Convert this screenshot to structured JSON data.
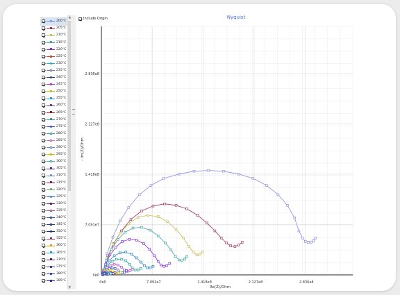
{
  "legend": {
    "items": [
      {
        "label": "200°C",
        "color": "#6a8fd8",
        "marker": "circle",
        "filled": false
      },
      {
        "label": "205°C",
        "color": "#b03060",
        "marker": "square",
        "filled": true
      },
      {
        "label": "210°C",
        "color": "#c8c060",
        "marker": "square",
        "filled": false
      },
      {
        "label": "215°C",
        "color": "#40a0a0",
        "marker": "square",
        "filled": false
      },
      {
        "label": "220°C",
        "color": "#8a2be2",
        "marker": "square",
        "filled": true
      },
      {
        "label": "225°C",
        "color": "#d04040",
        "marker": "square",
        "filled": true
      },
      {
        "label": "230°C",
        "color": "#20b0d0",
        "marker": "circle",
        "filled": true
      },
      {
        "label": "235°C",
        "color": "#7a7aa0",
        "marker": "square",
        "filled": false
      },
      {
        "label": "240°C",
        "color": "#1f3f8f",
        "marker": "circle",
        "filled": true
      },
      {
        "label": "245°C",
        "color": "#c040c0",
        "marker": "square",
        "filled": true
      },
      {
        "label": "250°C",
        "color": "#c0c020",
        "marker": "square",
        "filled": true
      },
      {
        "label": "255°C",
        "color": "#20a0e0",
        "marker": "square",
        "filled": true
      },
      {
        "label": "260°C",
        "color": "#6a3a9a",
        "marker": "square",
        "filled": true
      },
      {
        "label": "265°C",
        "color": "#8b1a1a",
        "marker": "square",
        "filled": true
      },
      {
        "label": "270°C",
        "color": "#3aa080",
        "marker": "square",
        "filled": true
      },
      {
        "label": "275°C",
        "color": "#3050d0",
        "marker": "circle",
        "filled": true
      },
      {
        "label": "280°C",
        "color": "#3aa0b0",
        "marker": "square",
        "filled": false
      },
      {
        "label": "285°C",
        "color": "#d060c0",
        "marker": "square",
        "filled": false
      },
      {
        "label": "290°C",
        "color": "#6090e0",
        "marker": "square",
        "filled": false
      },
      {
        "label": "295°C",
        "color": "#d0c000",
        "marker": "square",
        "filled": true
      },
      {
        "label": "300°C",
        "color": "#40b0c0",
        "marker": "square",
        "filled": false
      },
      {
        "label": "305°C",
        "color": "#4a2a8a",
        "marker": "square",
        "filled": true
      },
      {
        "label": "310°C",
        "color": "#5080b0",
        "marker": "circle",
        "filled": false
      },
      {
        "label": "315°C",
        "color": "#8a1a4a",
        "marker": "square",
        "filled": true
      },
      {
        "label": "320°C",
        "color": "#60a050",
        "marker": "circle",
        "filled": false
      },
      {
        "label": "325°C",
        "color": "#3070c0",
        "marker": "circle",
        "filled": false
      },
      {
        "label": "330°C",
        "color": "#5a2a6a",
        "marker": "square",
        "filled": true
      },
      {
        "label": "335°C",
        "color": "#b05090",
        "marker": "square",
        "filled": false
      },
      {
        "label": "340°C",
        "color": "#3060a0",
        "marker": "square",
        "filled": true
      },
      {
        "label": "345°C",
        "color": "#2040a0",
        "marker": "square",
        "filled": true
      },
      {
        "label": "350°C",
        "color": "#1a2a6a",
        "marker": "circle",
        "filled": true
      },
      {
        "label": "355°C",
        "color": "#8a2a6a",
        "marker": "square",
        "filled": true
      },
      {
        "label": "360°C",
        "color": "#d0a020",
        "marker": "square",
        "filled": true
      },
      {
        "label": "365°C",
        "color": "#20a0d0",
        "marker": "square",
        "filled": true
      },
      {
        "label": "370°C",
        "color": "#6a1a6a",
        "marker": "square",
        "filled": true
      },
      {
        "label": "375°C",
        "color": "#4a3a8a",
        "marker": "square",
        "filled": true
      },
      {
        "label": "380°C",
        "color": "#3a4aaa",
        "marker": "square",
        "filled": true
      },
      {
        "label": "385°C",
        "color": "#2030a0",
        "marker": "square",
        "filled": true
      }
    ]
  },
  "toolbar": {
    "include_origin_label": "Include Origin",
    "include_origin_checked": true
  },
  "chart_data": {
    "type": "scatter",
    "title": "Nyquist",
    "xlabel": "Re(Z)/Ohm",
    "ylabel": "- Im(Z)/Ohm",
    "xlim": [
      0,
      350000000.0
    ],
    "ylim": [
      0,
      350000000.0
    ],
    "xticks": [
      {
        "v": 0,
        "label": "0e0"
      },
      {
        "v": 70910000.0,
        "label": "7.091e7"
      },
      {
        "v": 141800000.0,
        "label": "1.418e8"
      },
      {
        "v": 212700000.0,
        "label": "2.127e8"
      },
      {
        "v": 283600000.0,
        "label": "2.836e8"
      }
    ],
    "yticks": [
      {
        "v": 0,
        "label": "0e0"
      },
      {
        "v": 70910000.0,
        "label": "7.091e7"
      },
      {
        "v": 141800000.0,
        "label": "1.418e8"
      },
      {
        "v": 212700000.0,
        "label": "2.127e8"
      },
      {
        "v": 283600000.0,
        "label": "2.836e8"
      }
    ],
    "grid": true,
    "series": [
      {
        "name": "200°C",
        "color": "#8a8ee8",
        "points": [
          [
            3000000.0,
            7000000.0
          ],
          [
            8000000.0,
            30000000.0
          ],
          [
            16000000.0,
            53000000.0
          ],
          [
            26000000.0,
            76000000.0
          ],
          [
            38000000.0,
            95000000.0
          ],
          [
            53000000.0,
            113000000.0
          ],
          [
            69000000.0,
            126000000.0
          ],
          [
            87000000.0,
            136000000.0
          ],
          [
            108000000.0,
            142000000.0
          ],
          [
            129000000.0,
            146000000.0
          ],
          [
            149000000.0,
            147000000.0
          ],
          [
            170000000.0,
            146000000.0
          ],
          [
            191000000.0,
            142000000.0
          ],
          [
            211000000.0,
            136000000.0
          ],
          [
            230000000.0,
            126000000.0
          ],
          [
            246000000.0,
            113000000.0
          ],
          [
            259000000.0,
            98000000.0
          ],
          [
            269000000.0,
            80000000.0
          ],
          [
            275000000.0,
            62000000.0
          ],
          [
            280000000.0,
            52000000.0
          ],
          [
            284000000.0,
            47000000.0
          ],
          [
            288000000.0,
            46000000.0
          ],
          [
            292000000.0,
            46000000.0
          ],
          [
            295000000.0,
            48000000.0
          ],
          [
            298000000.0,
            52000000.0
          ]
        ]
      },
      {
        "name": "205°C",
        "color": "#a03060",
        "points": [
          [
            3000000.0,
            6000000.0
          ],
          [
            9000000.0,
            25000000.0
          ],
          [
            17000000.0,
            44000000.0
          ],
          [
            28000000.0,
            62000000.0
          ],
          [
            41000000.0,
            78000000.0
          ],
          [
            56000000.0,
            90000000.0
          ],
          [
            72000000.0,
            97000000.0
          ],
          [
            88000000.0,
            100000000.0
          ],
          [
            104000000.0,
            98000000.0
          ],
          [
            119000000.0,
            93000000.0
          ],
          [
            134000000.0,
            84000000.0
          ],
          [
            147000000.0,
            73000000.0
          ],
          [
            158000000.0,
            62000000.0
          ],
          [
            167000000.0,
            52000000.0
          ],
          [
            174000000.0,
            45000000.0
          ],
          [
            180000000.0,
            41000000.0
          ],
          [
            186000000.0,
            40000000.0
          ],
          [
            191000000.0,
            42000000.0
          ],
          [
            196000000.0,
            46000000.0
          ]
        ]
      },
      {
        "name": "210°C",
        "color": "#c8b850",
        "points": [
          [
            3000000.0,
            6000000.0
          ],
          [
            8000000.0,
            24000000.0
          ],
          [
            16000000.0,
            43000000.0
          ],
          [
            26000000.0,
            59000000.0
          ],
          [
            38000000.0,
            72000000.0
          ],
          [
            51000000.0,
            81000000.0
          ],
          [
            65000000.0,
            84000000.0
          ],
          [
            79000000.0,
            82000000.0
          ],
          [
            92000000.0,
            75000000.0
          ],
          [
            104000000.0,
            64000000.0
          ],
          [
            114000000.0,
            52000000.0
          ],
          [
            122000000.0,
            40000000.0
          ],
          [
            128000000.0,
            32000000.0
          ],
          [
            133000000.0,
            28000000.0
          ],
          [
            137000000.0,
            29000000.0
          ],
          [
            141000000.0,
            32000000.0
          ]
        ]
      },
      {
        "name": "215°C",
        "color": "#40a0a0",
        "points": [
          [
            3000000.0,
            5000000.0
          ],
          [
            7000000.0,
            20000000.0
          ],
          [
            14000000.0,
            36000000.0
          ],
          [
            23000000.0,
            50000000.0
          ],
          [
            33000000.0,
            60000000.0
          ],
          [
            44000000.0,
            66000000.0
          ],
          [
            56000000.0,
            67000000.0
          ],
          [
            68000000.0,
            63000000.0
          ],
          [
            79000000.0,
            55000000.0
          ],
          [
            89000000.0,
            45000000.0
          ],
          [
            97000000.0,
            35000000.0
          ],
          [
            103000000.0,
            26000000.0
          ],
          [
            108000000.0,
            21000000.0
          ],
          [
            112000000.0,
            20000000.0
          ],
          [
            116000000.0,
            22000000.0
          ],
          [
            119000000.0,
            26000000.0
          ]
        ]
      },
      {
        "name": "220°C",
        "color": "#8a2be2",
        "points": [
          [
            3000000.0,
            4000000.0
          ],
          [
            6000000.0,
            15000000.0
          ],
          [
            12000000.0,
            28000000.0
          ],
          [
            20000000.0,
            39000000.0
          ],
          [
            29000000.0,
            47000000.0
          ],
          [
            39000000.0,
            50000000.0
          ],
          [
            49000000.0,
            49000000.0
          ],
          [
            59000000.0,
            44000000.0
          ],
          [
            67000000.0,
            36000000.0
          ],
          [
            74000000.0,
            27000000.0
          ],
          [
            79000000.0,
            19000000.0
          ],
          [
            83000000.0,
            14000000.0
          ],
          [
            87000000.0,
            12000000.0
          ],
          [
            91000000.0,
            13000000.0
          ],
          [
            95000000.0,
            16000000.0
          ]
        ]
      },
      {
        "name": "230°C",
        "color": "#2080c0",
        "points": [
          [
            3000000.0,
            3000000.0
          ],
          [
            6000000.0,
            11000000.0
          ],
          [
            11000000.0,
            20000000.0
          ],
          [
            18000000.0,
            27000000.0
          ],
          [
            26000000.0,
            31000000.0
          ],
          [
            34000000.0,
            32000000.0
          ],
          [
            42000000.0,
            29000000.0
          ],
          [
            49000000.0,
            24000000.0
          ],
          [
            55000000.0,
            18000000.0
          ],
          [
            60000000.0,
            13000000.0
          ],
          [
            64000000.0,
            10000000.0
          ],
          [
            68000000.0,
            10000000.0
          ],
          [
            72000000.0,
            12000000.0
          ]
        ]
      },
      {
        "name": "250°C",
        "color": "#20a0a0",
        "points": [
          [
            2000000.0,
            2000000.0
          ],
          [
            5000000.0,
            8000000.0
          ],
          [
            9000000.0,
            14000000.0
          ],
          [
            15000000.0,
            19000000.0
          ],
          [
            21000000.0,
            22000000.0
          ],
          [
            28000000.0,
            22000000.0
          ],
          [
            34000000.0,
            20000000.0
          ],
          [
            39000000.0,
            15000000.0
          ],
          [
            43000000.0,
            10000000.0
          ],
          [
            47000000.0,
            7000000.0
          ],
          [
            51000000.0,
            7000000.0
          ],
          [
            55000000.0,
            9000000.0
          ]
        ]
      },
      {
        "name": "270°C",
        "color": "#c040c0",
        "points": [
          [
            2000000.0,
            2000000.0
          ],
          [
            4000000.0,
            6000000.0
          ],
          [
            8000000.0,
            10000000.0
          ],
          [
            13000000.0,
            13000000.0
          ],
          [
            18000000.0,
            15000000.0
          ],
          [
            23000000.0,
            14000000.0
          ],
          [
            28000000.0,
            11000000.0
          ],
          [
            32000000.0,
            7000000.0
          ],
          [
            36000000.0,
            5000000.0
          ],
          [
            40000000.0,
            6000000.0
          ],
          [
            43000000.0,
            8000000.0
          ]
        ]
      },
      {
        "name": "290°C",
        "color": "#3050d0",
        "points": [
          [
            2000000.0,
            1000000.0
          ],
          [
            4000000.0,
            4000000.0
          ],
          [
            7000000.0,
            7000000.0
          ],
          [
            11000000.0,
            9000000.0
          ],
          [
            15000000.0,
            10000000.0
          ],
          [
            19000000.0,
            9000000.0
          ],
          [
            23000000.0,
            7000000.0
          ],
          [
            26000000.0,
            4000000.0
          ],
          [
            29000000.0,
            3000000.0
          ],
          [
            32000000.0,
            4000000.0
          ],
          [
            35000000.0,
            6000000.0
          ]
        ]
      },
      {
        "name": "310°C",
        "color": "#d0c000",
        "points": [
          [
            2000000.0,
            1000000.0
          ],
          [
            4000000.0,
            3000000.0
          ],
          [
            6000000.0,
            5000000.0
          ],
          [
            9000000.0,
            6000000.0
          ],
          [
            12000000.0,
            6500000.0
          ],
          [
            15000000.0,
            6000000.0
          ],
          [
            18000000.0,
            4000000.0
          ],
          [
            21000000.0,
            2500000.0
          ],
          [
            24000000.0,
            2500000.0
          ],
          [
            27000000.0,
            4000000.0
          ]
        ]
      },
      {
        "name": "330°C",
        "color": "#5a2a6a",
        "points": [
          [
            2000000.0,
            1000000.0
          ],
          [
            3500000.0,
            2500000.0
          ],
          [
            5500000.0,
            3500000.0
          ],
          [
            8000000.0,
            4200000.0
          ],
          [
            10500000.0,
            4200000.0
          ],
          [
            13000000.0,
            3200000.0
          ],
          [
            15000000.0,
            2000000.0
          ],
          [
            17000000.0,
            1800000.0
          ],
          [
            19000000.0,
            2800000.0
          ]
        ]
      },
      {
        "name": "360°C",
        "color": "#20a0d0",
        "points": [
          [
            1500000.0,
            500000.0
          ],
          [
            3000000.0,
            1500000.0
          ],
          [
            4500000.0,
            2200000.0
          ],
          [
            6500000.0,
            2600000.0
          ],
          [
            8500000.0,
            2400000.0
          ],
          [
            10000000.0,
            1600000.0
          ],
          [
            11500000.0,
            1200000.0
          ],
          [
            13000000.0,
            1800000.0
          ]
        ]
      },
      {
        "name": "385°C",
        "color": "#2030a0",
        "points": [
          [
            1500000.0,
            400000.0
          ],
          [
            2500000.0,
            1000000.0
          ],
          [
            3500000.0,
            1500000.0
          ],
          [
            5000000.0,
            1700000.0
          ],
          [
            6500000.0,
            1500000.0
          ],
          [
            7500000.0,
            1000000.0
          ],
          [
            8500000.0,
            900000.0
          ],
          [
            9500000.0,
            1300000.0
          ]
        ]
      }
    ]
  }
}
